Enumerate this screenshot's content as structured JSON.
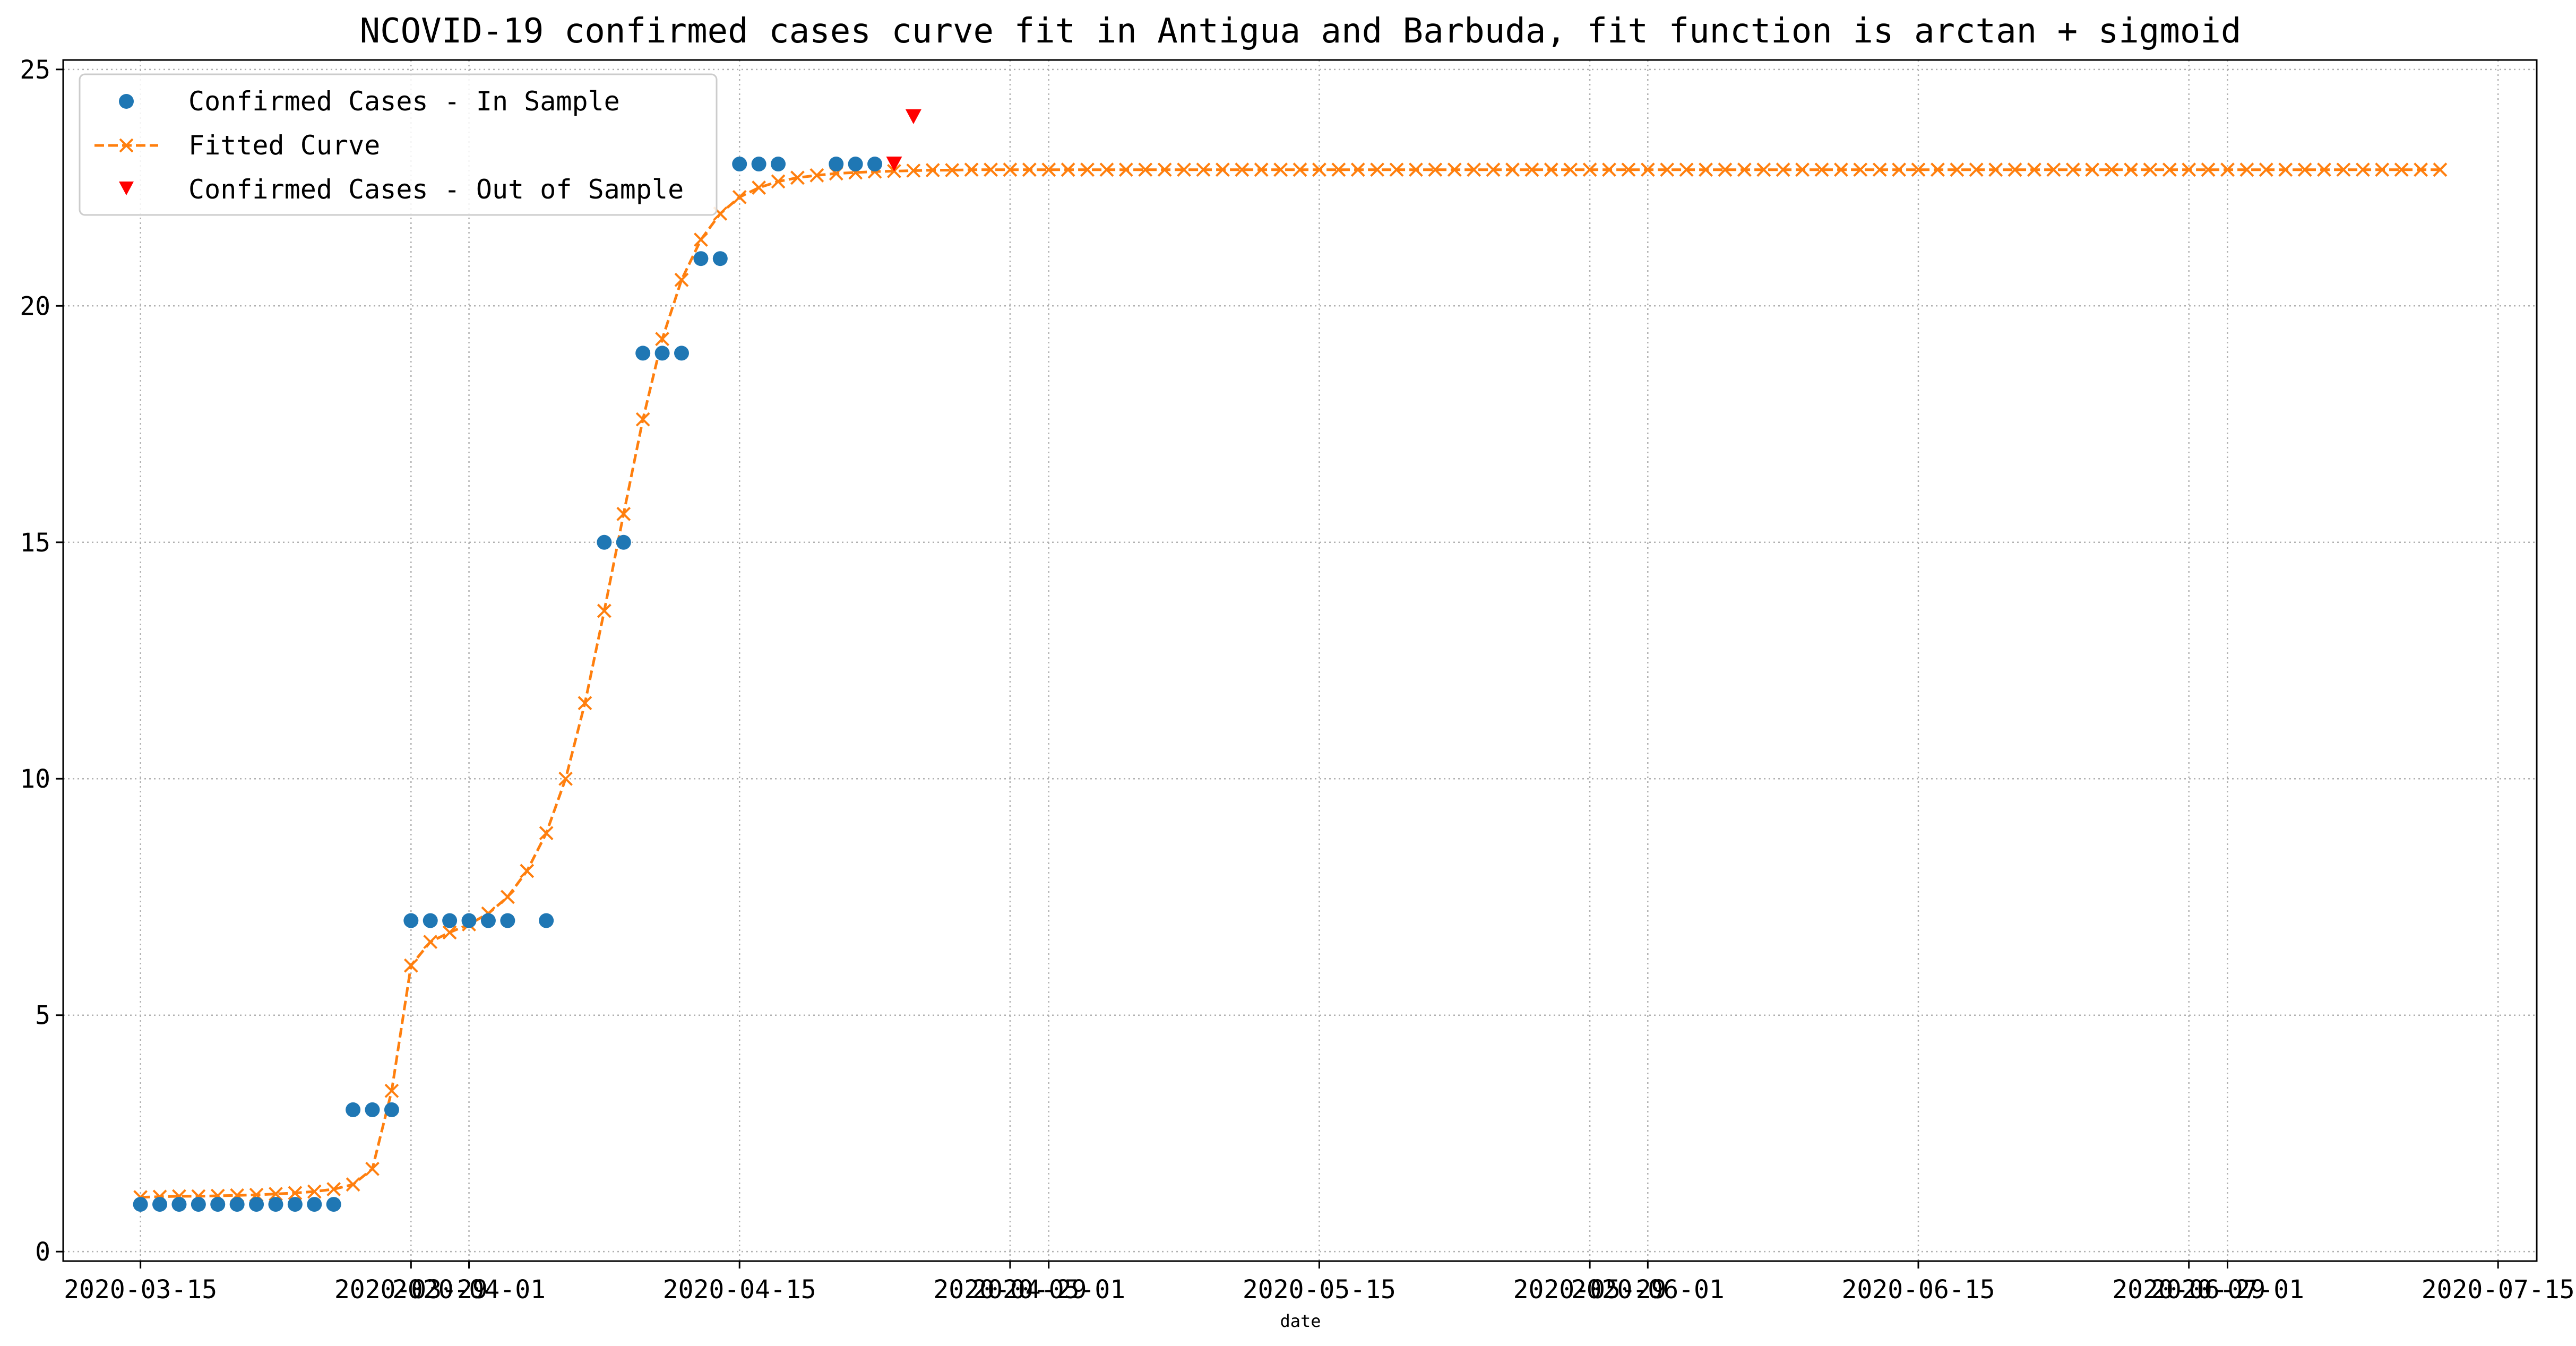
{
  "chart_data": {
    "type": "scatter",
    "title": "NCOVID-19 confirmed cases curve fit in Antigua and Barbuda, fit function is arctan + sigmoid",
    "xlabel": "date",
    "ylabel": "",
    "x_range": [
      "2020-03-11",
      "2020-07-17"
    ],
    "ylim": [
      -0.2,
      25.2
    ],
    "grid": true,
    "legend_position": "upper-left",
    "x_ticks": [
      "2020-03-15",
      "2020-03-29",
      "2020-04-01",
      "2020-04-15",
      "2020-04-29",
      "2020-05-01",
      "2020-05-15",
      "2020-05-29",
      "2020-06-01",
      "2020-06-15",
      "2020-06-29",
      "2020-07-01",
      "2020-07-15"
    ],
    "y_ticks": [
      0,
      5,
      10,
      15,
      20,
      25
    ],
    "colors": {
      "in_sample": "#1f77b4",
      "fitted": "#ff7f0e",
      "out_sample": "#ff0000"
    },
    "legend": [
      {
        "label": "Confirmed Cases - In Sample",
        "marker": "dot"
      },
      {
        "label": "Fitted Curve",
        "marker": "dashed-x"
      },
      {
        "label": "Confirmed Cases - Out of Sample",
        "marker": "triangle-down"
      }
    ],
    "series": [
      {
        "name": "Confirmed Cases - In Sample",
        "points": [
          [
            "2020-03-15",
            1
          ],
          [
            "2020-03-16",
            1
          ],
          [
            "2020-03-17",
            1
          ],
          [
            "2020-03-18",
            1
          ],
          [
            "2020-03-19",
            1
          ],
          [
            "2020-03-20",
            1
          ],
          [
            "2020-03-21",
            1
          ],
          [
            "2020-03-22",
            1
          ],
          [
            "2020-03-23",
            1
          ],
          [
            "2020-03-24",
            1
          ],
          [
            "2020-03-25",
            1
          ],
          [
            "2020-03-26",
            3
          ],
          [
            "2020-03-27",
            3
          ],
          [
            "2020-03-28",
            3
          ],
          [
            "2020-03-29",
            7
          ],
          [
            "2020-03-30",
            7
          ],
          [
            "2020-03-31",
            7
          ],
          [
            "2020-04-01",
            7
          ],
          [
            "2020-04-02",
            7
          ],
          [
            "2020-04-03",
            7
          ],
          [
            "2020-04-05",
            7
          ],
          [
            "2020-04-08",
            15
          ],
          [
            "2020-04-09",
            15
          ],
          [
            "2020-04-10",
            19
          ],
          [
            "2020-04-11",
            19
          ],
          [
            "2020-04-12",
            19
          ],
          [
            "2020-04-13",
            21
          ],
          [
            "2020-04-14",
            21
          ],
          [
            "2020-04-15",
            23
          ],
          [
            "2020-04-16",
            23
          ],
          [
            "2020-04-17",
            23
          ],
          [
            "2020-04-20",
            23
          ],
          [
            "2020-04-21",
            23
          ],
          [
            "2020-04-22",
            23
          ]
        ]
      },
      {
        "name": "Fitted Curve",
        "points": [
          [
            "2020-03-15",
            1.15
          ],
          [
            "2020-03-16",
            1.16
          ],
          [
            "2020-03-17",
            1.17
          ],
          [
            "2020-03-18",
            1.17
          ],
          [
            "2020-03-19",
            1.18
          ],
          [
            "2020-03-20",
            1.19
          ],
          [
            "2020-03-21",
            1.2
          ],
          [
            "2020-03-22",
            1.22
          ],
          [
            "2020-03-23",
            1.24
          ],
          [
            "2020-03-24",
            1.27
          ],
          [
            "2020-03-25",
            1.32
          ],
          [
            "2020-03-26",
            1.42
          ],
          [
            "2020-03-27",
            1.75
          ],
          [
            "2020-03-28",
            3.4
          ],
          [
            "2020-03-29",
            6.05
          ],
          [
            "2020-03-30",
            6.55
          ],
          [
            "2020-03-31",
            6.75
          ],
          [
            "2020-04-01",
            6.92
          ],
          [
            "2020-04-02",
            7.15
          ],
          [
            "2020-04-03",
            7.5
          ],
          [
            "2020-04-04",
            8.05
          ],
          [
            "2020-04-05",
            8.85
          ],
          [
            "2020-04-06",
            10.0
          ],
          [
            "2020-04-07",
            11.6
          ],
          [
            "2020-04-08",
            13.55
          ],
          [
            "2020-04-09",
            15.6
          ],
          [
            "2020-04-10",
            17.6
          ],
          [
            "2020-04-11",
            19.3
          ],
          [
            "2020-04-12",
            20.55
          ],
          [
            "2020-04-13",
            21.4
          ],
          [
            "2020-04-14",
            21.95
          ],
          [
            "2020-04-15",
            22.3
          ],
          [
            "2020-04-16",
            22.5
          ],
          [
            "2020-04-17",
            22.63
          ],
          [
            "2020-04-18",
            22.71
          ],
          [
            "2020-04-19",
            22.76
          ],
          [
            "2020-04-20",
            22.8
          ],
          [
            "2020-04-21",
            22.82
          ],
          [
            "2020-04-22",
            22.84
          ],
          [
            "2020-04-23",
            22.85
          ],
          [
            "2020-04-24",
            22.86
          ],
          [
            "2020-04-25",
            22.87
          ],
          [
            "2020-04-26",
            22.87
          ],
          [
            "2020-04-27",
            22.88
          ],
          [
            "2020-04-28",
            22.88
          ],
          [
            "2020-04-29",
            22.88
          ],
          [
            "2020-04-30",
            22.88
          ],
          [
            "2020-05-01",
            22.88
          ],
          [
            "2020-05-02",
            22.88
          ],
          [
            "2020-05-03",
            22.88
          ],
          [
            "2020-05-04",
            22.88
          ],
          [
            "2020-05-05",
            22.88
          ],
          [
            "2020-05-06",
            22.88
          ],
          [
            "2020-05-07",
            22.88
          ],
          [
            "2020-05-08",
            22.88
          ],
          [
            "2020-05-09",
            22.88
          ],
          [
            "2020-05-10",
            22.88
          ],
          [
            "2020-05-11",
            22.88
          ],
          [
            "2020-05-12",
            22.88
          ],
          [
            "2020-05-13",
            22.88
          ],
          [
            "2020-05-14",
            22.88
          ],
          [
            "2020-05-15",
            22.88
          ],
          [
            "2020-05-16",
            22.88
          ],
          [
            "2020-05-17",
            22.88
          ],
          [
            "2020-05-18",
            22.88
          ],
          [
            "2020-05-19",
            22.88
          ],
          [
            "2020-05-20",
            22.88
          ],
          [
            "2020-05-21",
            22.88
          ],
          [
            "2020-05-22",
            22.88
          ],
          [
            "2020-05-23",
            22.88
          ],
          [
            "2020-05-24",
            22.88
          ],
          [
            "2020-05-25",
            22.88
          ],
          [
            "2020-05-26",
            22.88
          ],
          [
            "2020-05-27",
            22.88
          ],
          [
            "2020-05-28",
            22.88
          ],
          [
            "2020-05-29",
            22.88
          ],
          [
            "2020-05-30",
            22.88
          ],
          [
            "2020-05-31",
            22.88
          ],
          [
            "2020-06-01",
            22.88
          ],
          [
            "2020-06-02",
            22.88
          ],
          [
            "2020-06-03",
            22.88
          ],
          [
            "2020-06-04",
            22.88
          ],
          [
            "2020-06-05",
            22.88
          ],
          [
            "2020-06-06",
            22.88
          ],
          [
            "2020-06-07",
            22.88
          ],
          [
            "2020-06-08",
            22.88
          ],
          [
            "2020-06-09",
            22.88
          ],
          [
            "2020-06-10",
            22.88
          ],
          [
            "2020-06-11",
            22.88
          ],
          [
            "2020-06-12",
            22.88
          ],
          [
            "2020-06-13",
            22.88
          ],
          [
            "2020-06-14",
            22.88
          ],
          [
            "2020-06-15",
            22.88
          ],
          [
            "2020-06-16",
            22.88
          ],
          [
            "2020-06-17",
            22.88
          ],
          [
            "2020-06-18",
            22.88
          ],
          [
            "2020-06-19",
            22.88
          ],
          [
            "2020-06-20",
            22.88
          ],
          [
            "2020-06-21",
            22.88
          ],
          [
            "2020-06-22",
            22.88
          ],
          [
            "2020-06-23",
            22.88
          ],
          [
            "2020-06-24",
            22.88
          ],
          [
            "2020-06-25",
            22.88
          ],
          [
            "2020-06-26",
            22.88
          ],
          [
            "2020-06-27",
            22.88
          ],
          [
            "2020-06-28",
            22.88
          ],
          [
            "2020-06-29",
            22.88
          ],
          [
            "2020-06-30",
            22.88
          ],
          [
            "2020-07-01",
            22.88
          ],
          [
            "2020-07-02",
            22.88
          ],
          [
            "2020-07-03",
            22.88
          ],
          [
            "2020-07-04",
            22.88
          ],
          [
            "2020-07-05",
            22.88
          ],
          [
            "2020-07-06",
            22.88
          ],
          [
            "2020-07-07",
            22.88
          ],
          [
            "2020-07-08",
            22.88
          ],
          [
            "2020-07-09",
            22.88
          ],
          [
            "2020-07-10",
            22.88
          ],
          [
            "2020-07-11",
            22.88
          ],
          [
            "2020-07-12",
            22.88
          ]
        ]
      },
      {
        "name": "Confirmed Cases - Out of Sample",
        "points": [
          [
            "2020-04-23",
            23
          ],
          [
            "2020-04-24",
            24
          ]
        ]
      }
    ]
  }
}
